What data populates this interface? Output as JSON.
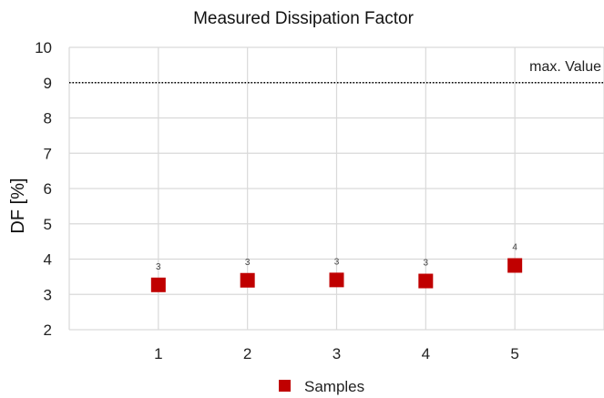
{
  "chart_data": {
    "type": "scatter",
    "title": "Measured Dissipation Factor",
    "xlabel": "",
    "ylabel": "DF [%]",
    "xlim": [
      0,
      6
    ],
    "ylim": [
      2,
      10
    ],
    "x_ticks": [
      1,
      2,
      3,
      4,
      5
    ],
    "y_ticks": [
      2,
      3,
      4,
      5,
      6,
      7,
      8,
      9,
      10
    ],
    "grid": true,
    "legend_position": "bottom",
    "series": [
      {
        "name": "Samples",
        "color": "#c00000",
        "marker": "square",
        "x": [
          1,
          2,
          3,
          4,
          5
        ],
        "y": [
          3.27,
          3.4,
          3.41,
          3.38,
          3.82
        ],
        "data_labels": [
          "3",
          "3",
          "3",
          "3",
          "4"
        ]
      }
    ],
    "reference_line": {
      "y": 9,
      "label": "max. Value",
      "style": "dotted",
      "color": "#000000"
    }
  }
}
